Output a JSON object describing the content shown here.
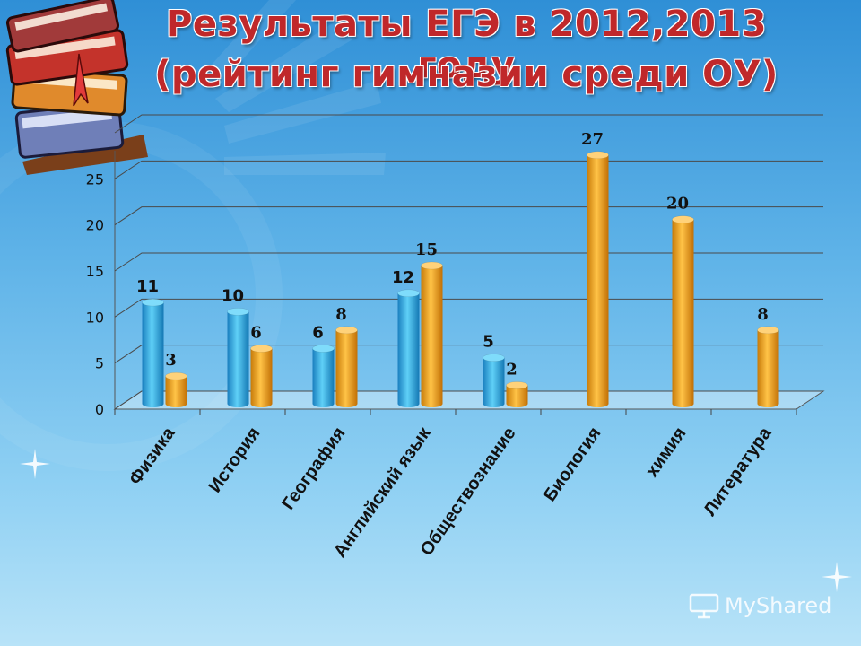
{
  "title": {
    "line1": "Результаты ЕГЭ в 2012,2013 году",
    "line2": "(рейтинг гимназии среди ОУ)"
  },
  "watermark": {
    "text": "MyShared"
  },
  "colors": {
    "series_2012": "#29a9e1",
    "series_2013": "#f0a020",
    "title": "#c0282a"
  },
  "chart_data": {
    "type": "bar",
    "categories": [
      "Физика",
      "История",
      "География",
      "Английский язык",
      "Обществознание",
      "Биология",
      "химия",
      "Литература"
    ],
    "series": [
      {
        "values": [
          11,
          10,
          6,
          12,
          5,
          null,
          null,
          null
        ]
      },
      {
        "values": [
          3,
          6,
          8,
          15,
          2,
          27,
          20,
          8
        ]
      }
    ],
    "y_ticks": [
      0,
      5,
      10,
      15,
      20,
      25
    ],
    "ylim": [
      0,
      30
    ],
    "grid": true,
    "legend": "none",
    "x_label_rotation": "-55deg"
  }
}
